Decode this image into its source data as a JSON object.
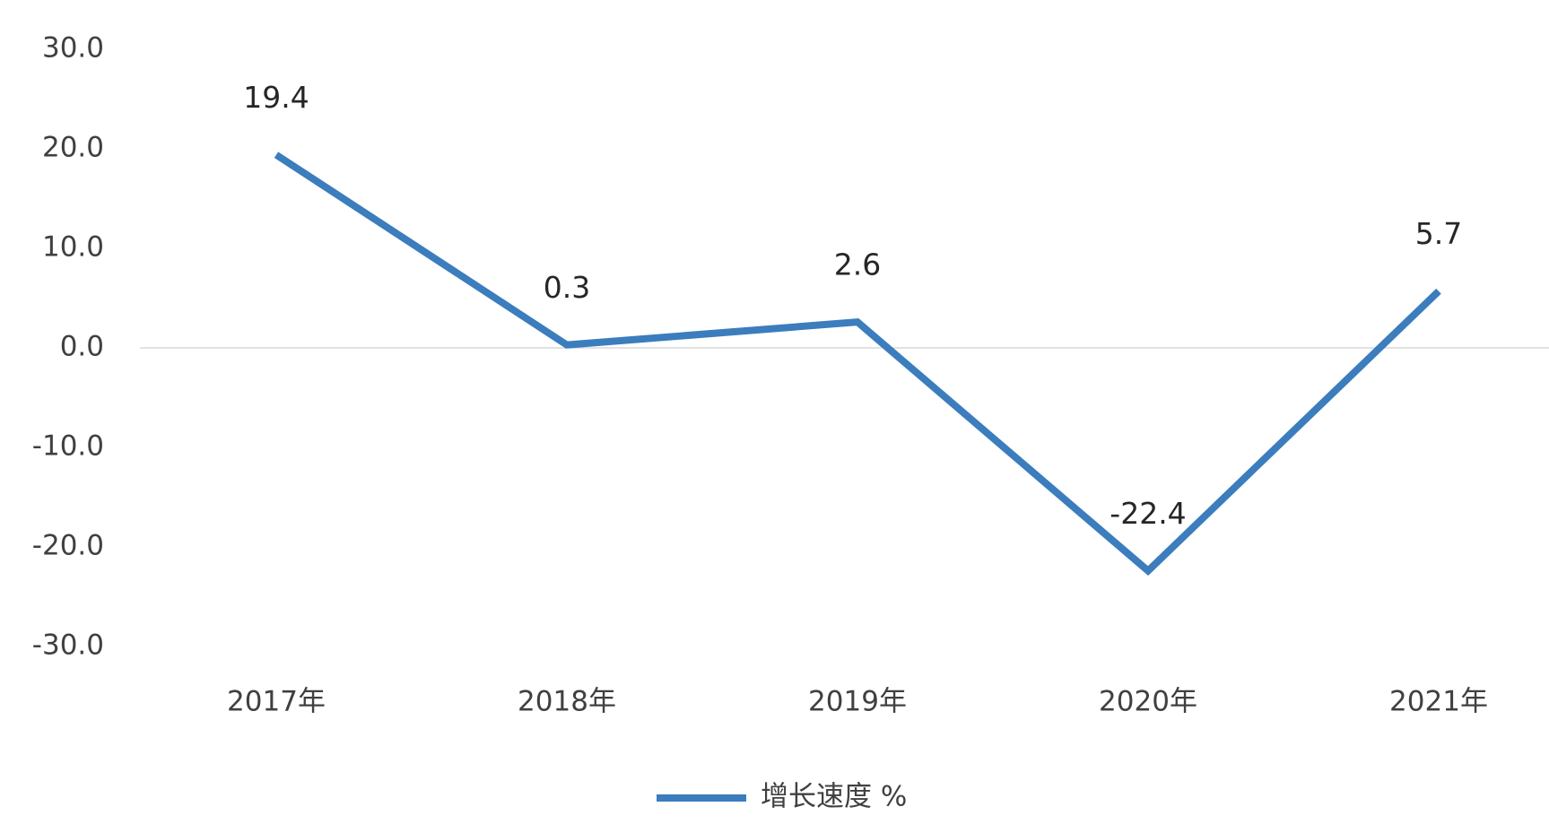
{
  "chart_data": {
    "type": "line",
    "categories": [
      "2017年",
      "2018年",
      "2019年",
      "2020年",
      "2021年"
    ],
    "series": [
      {
        "name": "增长速度 %",
        "color": "#3b7dbd",
        "values": [
          19.4,
          0.3,
          2.6,
          -22.4,
          5.7
        ]
      }
    ],
    "ylim": [
      -30,
      30
    ],
    "yticks": [
      {
        "value": 30,
        "label": "30.0"
      },
      {
        "value": 20,
        "label": "20.0"
      },
      {
        "value": 10,
        "label": "10.0"
      },
      {
        "value": 0,
        "label": "0.0"
      },
      {
        "value": -10,
        "label": "-10.0"
      },
      {
        "value": -20,
        "label": "-20.0"
      },
      {
        "value": -30,
        "label": "-30.0"
      }
    ],
    "legend": "bottom"
  }
}
